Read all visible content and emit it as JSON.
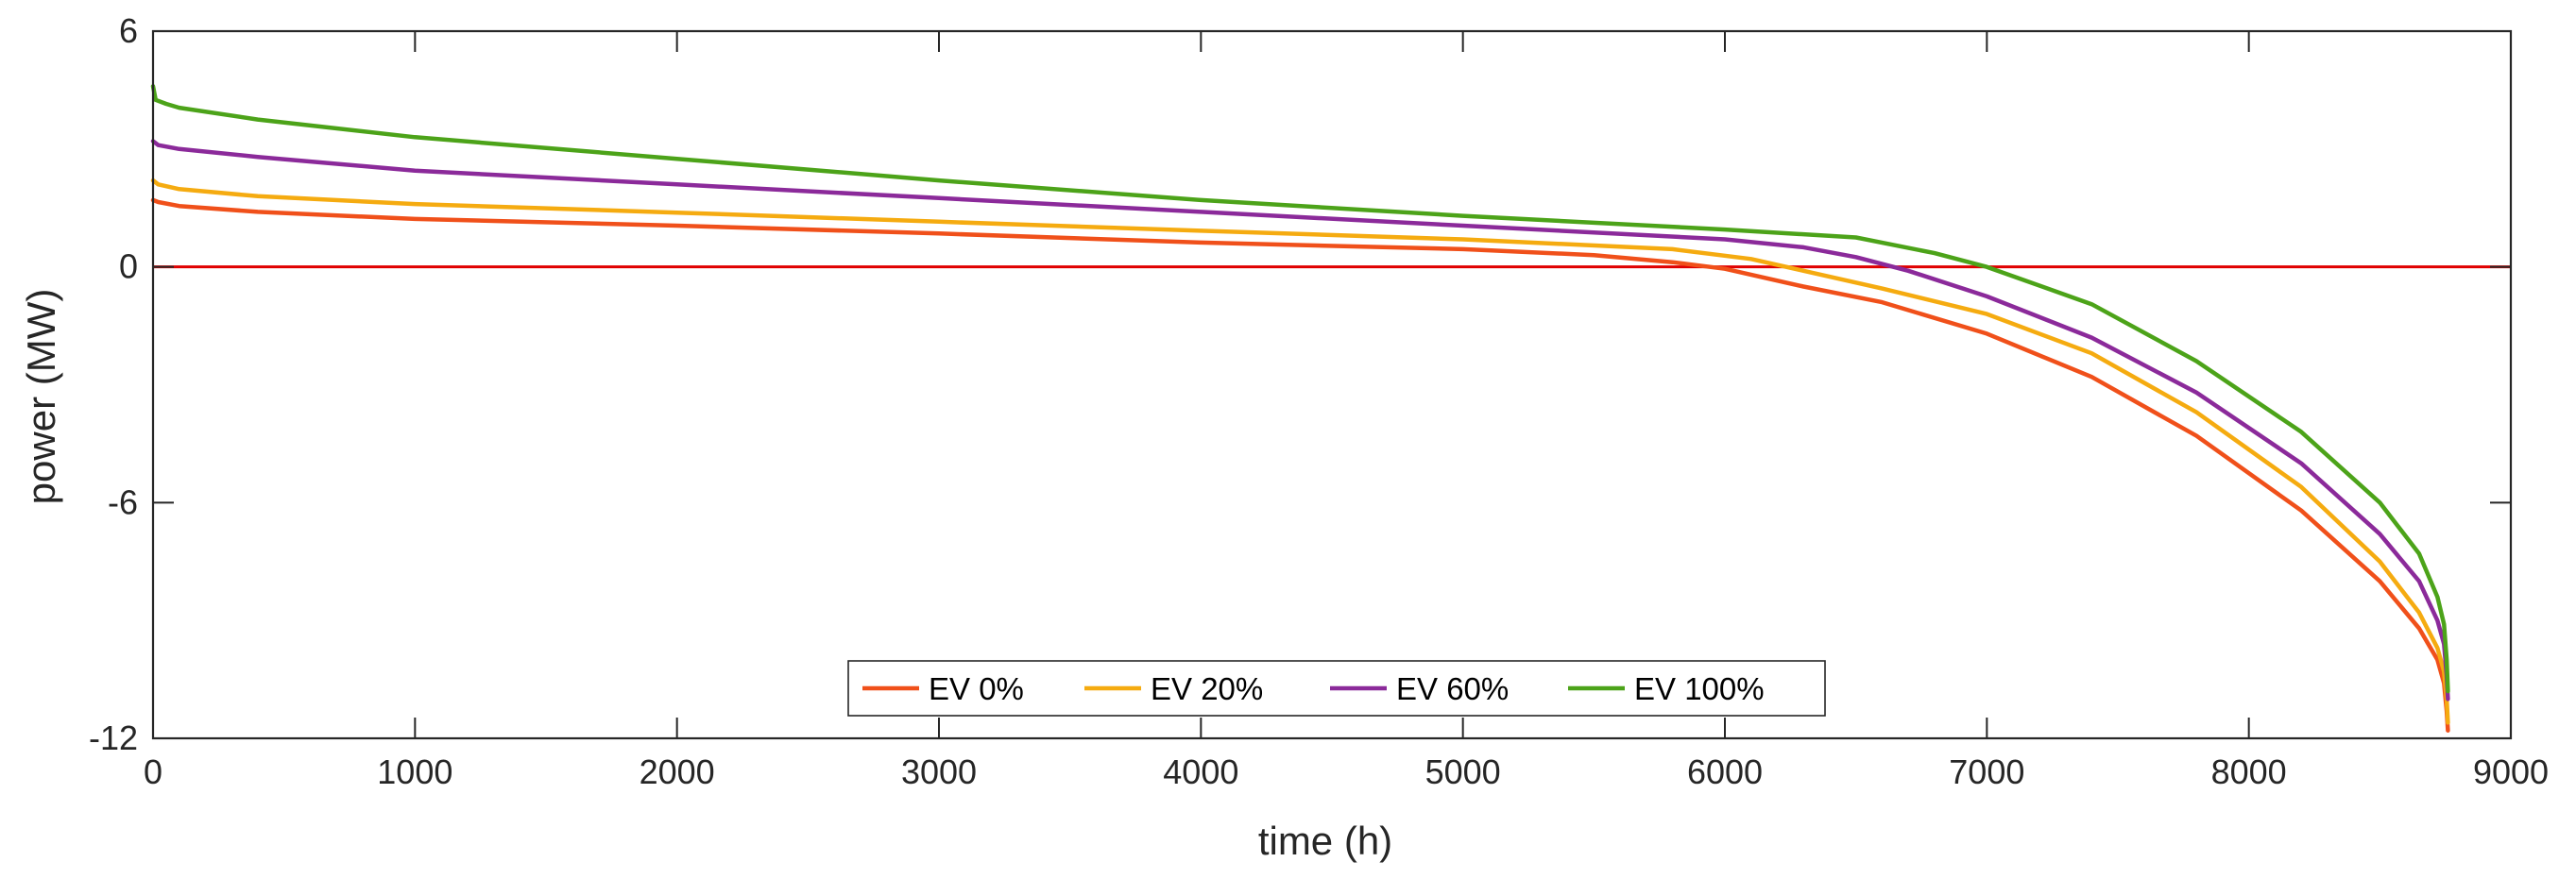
{
  "chart_data": {
    "type": "line",
    "title": "",
    "xlabel": "time (h)",
    "ylabel": "power (MW)",
    "xlim": [
      0,
      9000
    ],
    "ylim": [
      -12,
      6
    ],
    "xticks": [
      0,
      1000,
      2000,
      3000,
      4000,
      5000,
      6000,
      7000,
      8000,
      9000
    ],
    "yticks": [
      -12,
      -6,
      0,
      6
    ],
    "xtick_labels": [
      "0",
      "1000",
      "2000",
      "3000",
      "4000",
      "5000",
      "6000",
      "7000",
      "8000",
      "9000"
    ],
    "ytick_labels": [
      "-12",
      "-6",
      "0",
      "6"
    ],
    "grid": false,
    "legend_position": "bottom-center",
    "reference_line": {
      "y": 0,
      "color": "#e00000"
    },
    "series": [
      {
        "name": "EV 0%",
        "color": "#f0501a",
        "points": [
          [
            0,
            1.7
          ],
          [
            20,
            1.65
          ],
          [
            100,
            1.55
          ],
          [
            400,
            1.4
          ],
          [
            1000,
            1.22
          ],
          [
            2000,
            1.05
          ],
          [
            3000,
            0.85
          ],
          [
            4000,
            0.62
          ],
          [
            5000,
            0.45
          ],
          [
            5500,
            0.3
          ],
          [
            5800,
            0.12
          ],
          [
            6000,
            -0.05
          ],
          [
            6300,
            -0.5
          ],
          [
            6600,
            -0.9
          ],
          [
            7000,
            -1.7
          ],
          [
            7400,
            -2.8
          ],
          [
            7800,
            -4.3
          ],
          [
            8200,
            -6.2
          ],
          [
            8500,
            -8.0
          ],
          [
            8650,
            -9.2
          ],
          [
            8720,
            -10.0
          ],
          [
            8745,
            -10.6
          ],
          [
            8755,
            -11.3
          ],
          [
            8760,
            -11.8
          ]
        ]
      },
      {
        "name": "EV 20%",
        "color": "#f5ab10",
        "points": [
          [
            0,
            2.2
          ],
          [
            20,
            2.1
          ],
          [
            100,
            1.98
          ],
          [
            400,
            1.8
          ],
          [
            1000,
            1.6
          ],
          [
            2000,
            1.38
          ],
          [
            3000,
            1.15
          ],
          [
            4000,
            0.92
          ],
          [
            5000,
            0.7
          ],
          [
            5800,
            0.45
          ],
          [
            6100,
            0.2
          ],
          [
            6300,
            -0.1
          ],
          [
            6600,
            -0.55
          ],
          [
            7000,
            -1.2
          ],
          [
            7400,
            -2.2
          ],
          [
            7800,
            -3.7
          ],
          [
            8200,
            -5.6
          ],
          [
            8500,
            -7.5
          ],
          [
            8650,
            -8.8
          ],
          [
            8720,
            -9.7
          ],
          [
            8745,
            -10.3
          ],
          [
            8755,
            -11.0
          ],
          [
            8760,
            -11.6
          ]
        ]
      },
      {
        "name": "EV 60%",
        "color": "#8b2a9a",
        "points": [
          [
            0,
            3.2
          ],
          [
            20,
            3.1
          ],
          [
            100,
            3.0
          ],
          [
            400,
            2.8
          ],
          [
            1000,
            2.45
          ],
          [
            2000,
            2.1
          ],
          [
            3000,
            1.75
          ],
          [
            4000,
            1.4
          ],
          [
            5000,
            1.05
          ],
          [
            6000,
            0.7
          ],
          [
            6300,
            0.5
          ],
          [
            6500,
            0.25
          ],
          [
            6700,
            -0.1
          ],
          [
            7000,
            -0.75
          ],
          [
            7400,
            -1.8
          ],
          [
            7800,
            -3.2
          ],
          [
            8200,
            -5.0
          ],
          [
            8500,
            -6.8
          ],
          [
            8650,
            -8.0
          ],
          [
            8720,
            -9.0
          ],
          [
            8745,
            -9.6
          ],
          [
            8755,
            -10.4
          ],
          [
            8760,
            -11.0
          ]
        ]
      },
      {
        "name": "EV 100%",
        "color": "#4ca319",
        "points": [
          [
            0,
            4.6
          ],
          [
            10,
            4.25
          ],
          [
            50,
            4.15
          ],
          [
            100,
            4.05
          ],
          [
            400,
            3.75
          ],
          [
            1000,
            3.3
          ],
          [
            2000,
            2.75
          ],
          [
            3000,
            2.2
          ],
          [
            4000,
            1.7
          ],
          [
            5000,
            1.3
          ],
          [
            6000,
            0.95
          ],
          [
            6500,
            0.75
          ],
          [
            6800,
            0.35
          ],
          [
            7000,
            0.0
          ],
          [
            7400,
            -0.95
          ],
          [
            7800,
            -2.4
          ],
          [
            8200,
            -4.2
          ],
          [
            8500,
            -6.0
          ],
          [
            8650,
            -7.3
          ],
          [
            8720,
            -8.4
          ],
          [
            8745,
            -9.1
          ],
          [
            8755,
            -10.0
          ],
          [
            8760,
            -10.8
          ]
        ]
      }
    ]
  }
}
